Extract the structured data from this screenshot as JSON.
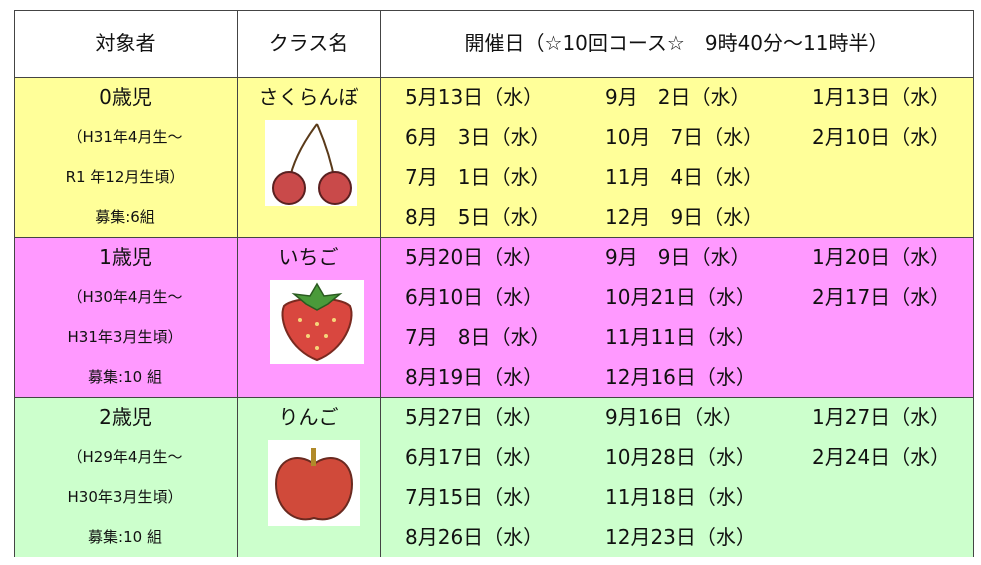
{
  "header": [
    "対象者",
    "クラス名",
    "開催日（☆10回コース☆　9時40分～11時半）"
  ],
  "groups": [
    {
      "age": "0歳児",
      "lines": [
        "（H31年4月生～",
        "R1 年12月生頃）",
        "募集:6組"
      ],
      "class": "さくらんぼ",
      "dates": [
        [
          "5月13日（水）",
          "6月　3日（水）",
          "7月　1日（水）",
          "8月　5日（水）"
        ],
        [
          "9月　2日（水）",
          "10月　7日（水）",
          "11月　4日（水）",
          "12月　9日（水）"
        ],
        [
          "1月13日（水）",
          "2月10日（水）"
        ]
      ]
    },
    {
      "age": "1歳児",
      "lines": [
        "（H30年4月生～",
        "H31年3月生頃）",
        "募集:10 組"
      ],
      "class": "いちご",
      "dates": [
        [
          "5月20日（水）",
          "6月10日（水）",
          "7月　8日（水）",
          "8月19日（水）"
        ],
        [
          "9月　9日（水）",
          "10月21日（水）",
          "11月11日（水）",
          "12月16日（水）"
        ],
        [
          "1月20日（水）",
          "2月17日（水）"
        ]
      ]
    },
    {
      "age": "2歳児",
      "lines": [
        "（H29年4月生～",
        "H30年3月生頃）",
        "募集:10 組"
      ],
      "class": "りんご",
      "dates": [
        [
          "5月27日（水）",
          "6月17日（水）",
          "7月15日（水）",
          "8月26日（水）"
        ],
        [
          "9月16日（水）",
          "10月28日（水）",
          "11月18日（水）",
          "12月23日（水）"
        ],
        [
          "1月27日（水）",
          "2月24日（水）"
        ]
      ]
    }
  ]
}
